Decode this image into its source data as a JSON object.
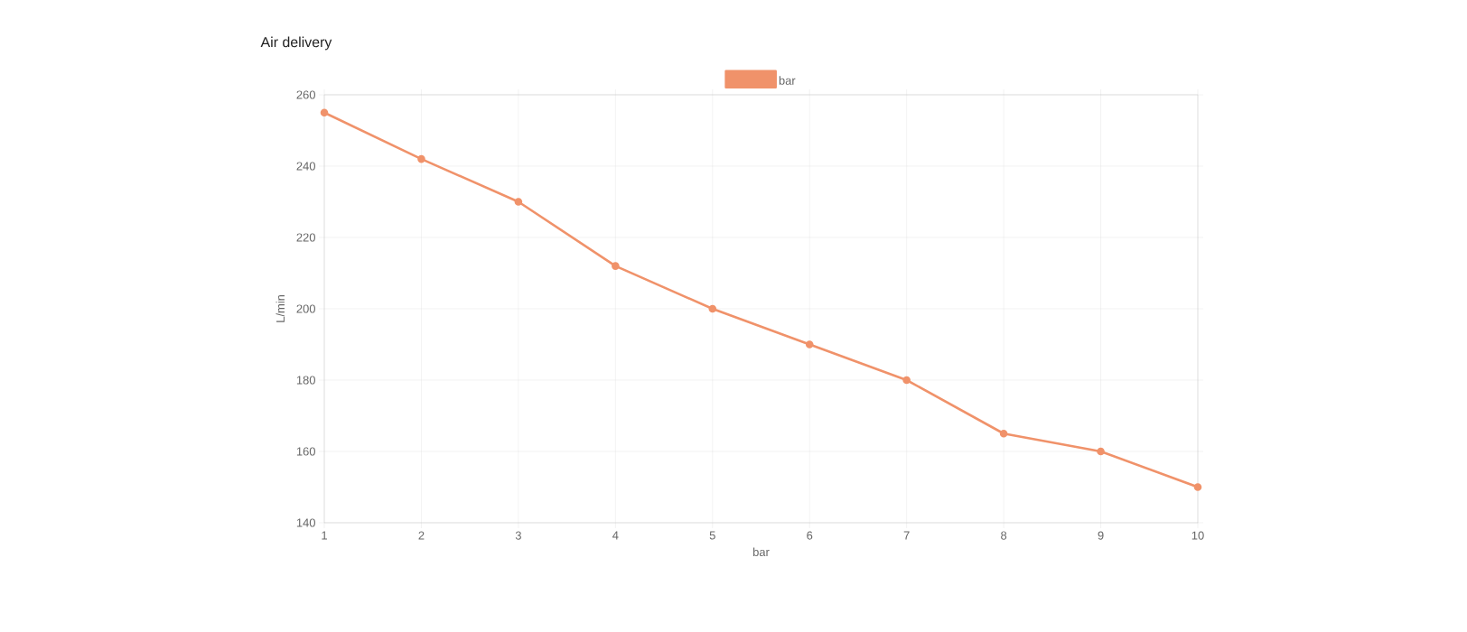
{
  "chart_data": {
    "type": "line",
    "title": "Air delivery",
    "xlabel": "bar",
    "ylabel": "L/min",
    "x": [
      1,
      2,
      3,
      4,
      5,
      6,
      7,
      8,
      9,
      10
    ],
    "series": [
      {
        "name": "bar",
        "color": "#f0926a",
        "values": [
          255,
          242,
          230,
          212,
          200,
          190,
          180,
          165,
          160,
          150
        ]
      }
    ],
    "xlim": [
      1,
      10
    ],
    "xticks": [
      1,
      2,
      3,
      4,
      5,
      6,
      7,
      8,
      9,
      10
    ],
    "ylim": [
      140,
      260
    ],
    "yticks": [
      140,
      160,
      180,
      200,
      220,
      240,
      260
    ],
    "grid": true,
    "legend": "top",
    "marker": "circle",
    "line_style": "solid"
  }
}
